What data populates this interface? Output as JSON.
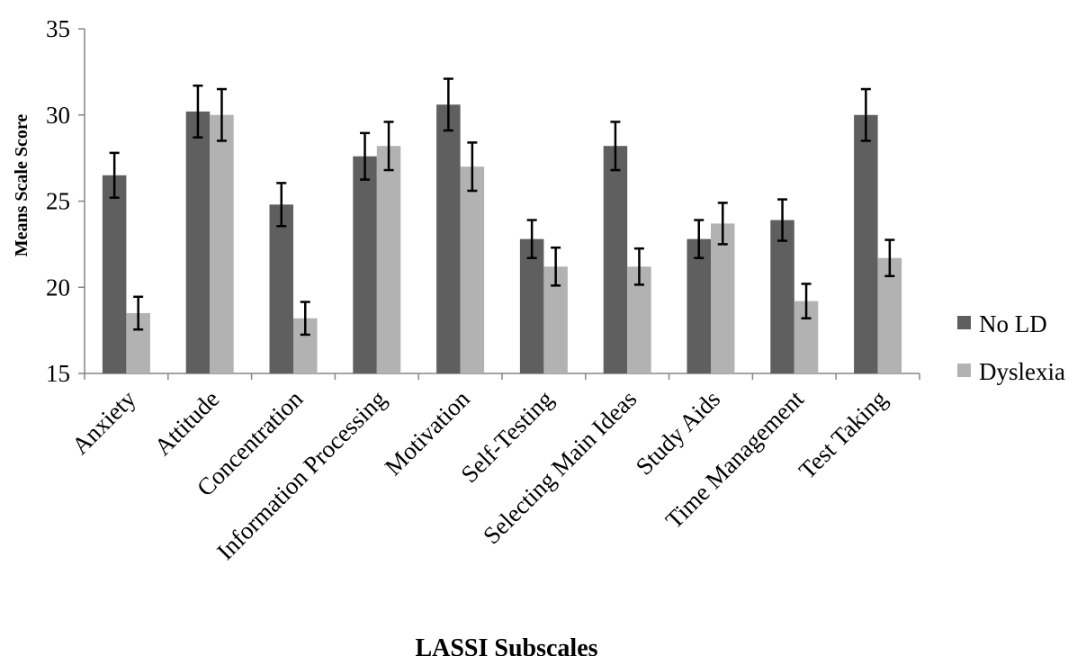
{
  "chart_data": {
    "type": "bar",
    "title": "",
    "xlabel": "LASSI Subscales",
    "ylabel": "Means Scale Score",
    "ylim": [
      15,
      35
    ],
    "yticks": [
      15,
      20,
      25,
      30,
      35
    ],
    "grid": false,
    "legend_position": "right",
    "categories": [
      "Anxiety",
      "Attitude",
      "Concentration",
      "Information Processing",
      "Motivation",
      "Self-Testing",
      "Selecting Main Ideas",
      "Study Aids",
      "Time Management",
      "Test Taking"
    ],
    "series": [
      {
        "name": "No LD",
        "color": "#5f5f5f",
        "values": [
          26.5,
          30.2,
          24.8,
          27.6,
          30.6,
          22.8,
          28.2,
          22.8,
          23.9,
          30.0
        ],
        "error": [
          1.3,
          1.5,
          1.25,
          1.35,
          1.5,
          1.1,
          1.4,
          1.1,
          1.2,
          1.5
        ]
      },
      {
        "name": "Dyslexia",
        "color": "#b2b2b2",
        "values": [
          18.5,
          30.0,
          18.2,
          28.2,
          27.0,
          21.2,
          21.2,
          23.7,
          19.2,
          21.7
        ],
        "error": [
          0.95,
          1.5,
          0.95,
          1.4,
          1.4,
          1.1,
          1.05,
          1.2,
          1.0,
          1.05
        ]
      }
    ]
  }
}
